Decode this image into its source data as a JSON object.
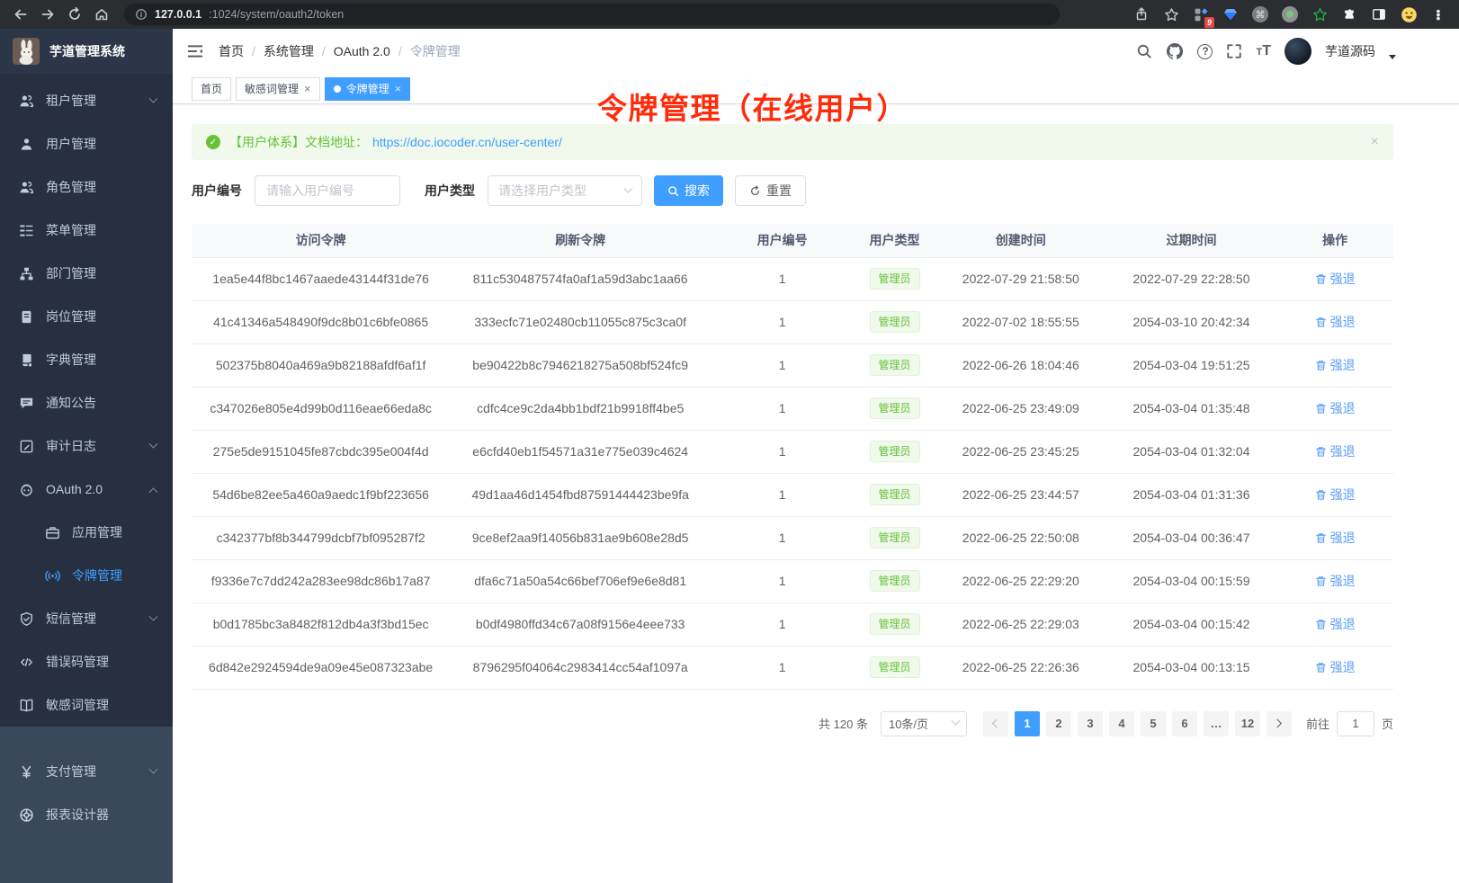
{
  "browser": {
    "url_host": "127.0.0.1",
    "url_path": ":1024/system/oauth2/token",
    "extension_badge": "9"
  },
  "sidebar": {
    "logo_title": "芋道管理系统",
    "items": [
      {
        "key": "tenant",
        "label": "租户管理",
        "icon": "users",
        "chevron": "down"
      },
      {
        "key": "user",
        "label": "用户管理",
        "icon": "user"
      },
      {
        "key": "role",
        "label": "角色管理",
        "icon": "users"
      },
      {
        "key": "menu",
        "label": "菜单管理",
        "icon": "menu-tree"
      },
      {
        "key": "dept",
        "label": "部门管理",
        "icon": "org-chart"
      },
      {
        "key": "post",
        "label": "岗位管理",
        "icon": "badge"
      },
      {
        "key": "dict",
        "label": "字典管理",
        "icon": "dictionary"
      },
      {
        "key": "notice",
        "label": "通知公告",
        "icon": "announcement"
      },
      {
        "key": "audit",
        "label": "审计日志",
        "icon": "audit-log",
        "chevron": "down"
      },
      {
        "key": "oauth2",
        "label": "OAuth 2.0",
        "icon": "oauth",
        "chevron": "up"
      },
      {
        "key": "oauth2-app",
        "label": "应用管理",
        "icon": "app",
        "child": true
      },
      {
        "key": "oauth2-token",
        "label": "令牌管理",
        "icon": "token",
        "child": true,
        "active": true
      },
      {
        "key": "sms",
        "label": "短信管理",
        "icon": "sms",
        "chevron": "down"
      },
      {
        "key": "errcode",
        "label": "错误码管理",
        "icon": "error-code"
      },
      {
        "key": "sensitive-word",
        "label": "敏感词管理",
        "icon": "sensitive-word"
      },
      {
        "key": "pay",
        "label": "支付管理",
        "icon": "pay",
        "chevron": "down",
        "section": "light"
      },
      {
        "key": "report",
        "label": "报表设计器",
        "icon": "report",
        "section": "light"
      }
    ]
  },
  "navbar": {
    "breadcrumbs": [
      "首页",
      "系统管理",
      "OAuth 2.0",
      "令牌管理"
    ],
    "username": "芋道源码"
  },
  "tabs": [
    {
      "label": "首页",
      "closable": false,
      "active": false
    },
    {
      "label": "敏感词管理",
      "closable": true,
      "active": false
    },
    {
      "label": "令牌管理",
      "closable": true,
      "active": true
    }
  ],
  "annotation": "令牌管理（在线用户）",
  "alert": {
    "text": "【用户体系】文档地址：",
    "link": "https://doc.iocoder.cn/user-center/"
  },
  "filters": {
    "user_id_label": "用户编号",
    "user_id_placeholder": "请输入用户编号",
    "user_type_label": "用户类型",
    "user_type_placeholder": "请选择用户类型",
    "search_label": "搜索",
    "reset_label": "重置"
  },
  "table": {
    "columns": [
      "访问令牌",
      "刷新令牌",
      "用户编号",
      "用户类型",
      "创建时间",
      "过期时间",
      "操作"
    ],
    "action_label": "强退",
    "rows": [
      {
        "access_token": "1ea5e44f8bc1467aaede43144f31de76",
        "refresh_token": "811c530487574fa0af1a59d3abc1aa66",
        "user_id": "1",
        "user_type": "管理员",
        "created": "2022-07-29 21:58:50",
        "expires": "2022-07-29 22:28:50"
      },
      {
        "access_token": "41c41346a548490f9dc8b01c6bfe0865",
        "refresh_token": "333ecfc71e02480cb11055c875c3ca0f",
        "user_id": "1",
        "user_type": "管理员",
        "created": "2022-07-02 18:55:55",
        "expires": "2054-03-10 20:42:34"
      },
      {
        "access_token": "502375b8040a469a9b82188afdf6af1f",
        "refresh_token": "be90422b8c7946218275a508bf524fc9",
        "user_id": "1",
        "user_type": "管理员",
        "created": "2022-06-26 18:04:46",
        "expires": "2054-03-04 19:51:25"
      },
      {
        "access_token": "c347026e805e4d99b0d116eae66eda8c",
        "refresh_token": "cdfc4ce9c2da4bb1bdf21b9918ff4be5",
        "user_id": "1",
        "user_type": "管理员",
        "created": "2022-06-25 23:49:09",
        "expires": "2054-03-04 01:35:48"
      },
      {
        "access_token": "275e5de9151045fe87cbdc395e004f4d",
        "refresh_token": "e6cfd40eb1f54571a31e775e039c4624",
        "user_id": "1",
        "user_type": "管理员",
        "created": "2022-06-25 23:45:25",
        "expires": "2054-03-04 01:32:04"
      },
      {
        "access_token": "54d6be82ee5a460a9aedc1f9bf223656",
        "refresh_token": "49d1aa46d1454fbd87591444423be9fa",
        "user_id": "1",
        "user_type": "管理员",
        "created": "2022-06-25 23:44:57",
        "expires": "2054-03-04 01:31:36"
      },
      {
        "access_token": "c342377bf8b344799dcbf7bf095287f2",
        "refresh_token": "9ce8ef2aa9f14056b831ae9b608e28d5",
        "user_id": "1",
        "user_type": "管理员",
        "created": "2022-06-25 22:50:08",
        "expires": "2054-03-04 00:36:47"
      },
      {
        "access_token": "f9336e7c7dd242a283ee98dc86b17a87",
        "refresh_token": "dfa6c71a50a54c66bef706ef9e6e8d81",
        "user_id": "1",
        "user_type": "管理员",
        "created": "2022-06-25 22:29:20",
        "expires": "2054-03-04 00:15:59"
      },
      {
        "access_token": "b0d1785bc3a8482f812db4a3f3bd15ec",
        "refresh_token": "b0df4980ffd34c67a08f9156e4eee733",
        "user_id": "1",
        "user_type": "管理员",
        "created": "2022-06-25 22:29:03",
        "expires": "2054-03-04 00:15:42"
      },
      {
        "access_token": "6d842e2924594de9a09e45e087323abe",
        "refresh_token": "8796295f04064c2983414cc54af1097a",
        "user_id": "1",
        "user_type": "管理员",
        "created": "2022-06-25 22:26:36",
        "expires": "2054-03-04 00:13:15"
      }
    ]
  },
  "pagination": {
    "total": "共 120 条",
    "page_size": "10条/页",
    "pages": [
      "1",
      "2",
      "3",
      "4",
      "5",
      "6",
      "…",
      "12"
    ],
    "active_page": "1",
    "goto_label": "前往",
    "goto_value": "1",
    "page_suffix": "页"
  }
}
